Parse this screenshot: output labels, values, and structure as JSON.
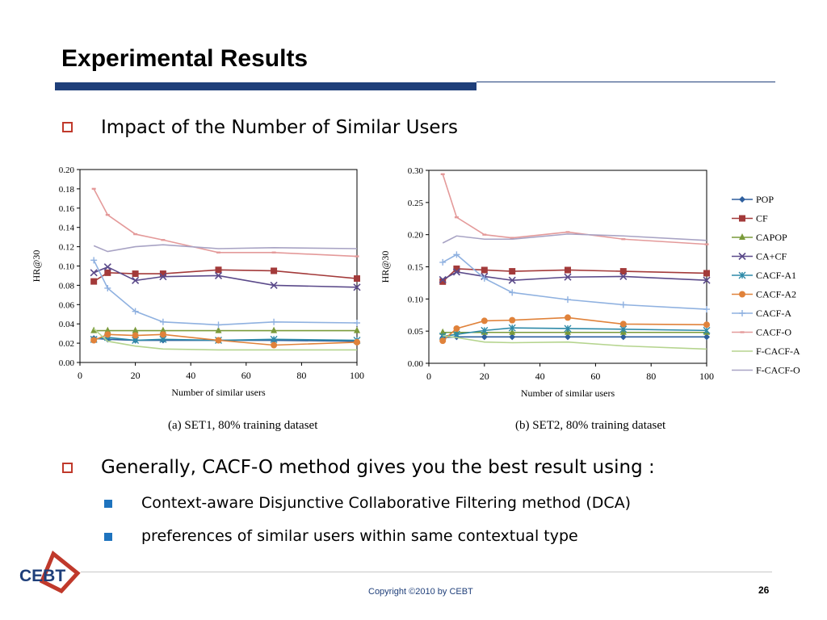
{
  "slide": {
    "title": "Experimental Results",
    "bullet1": "Impact of the Number of Similar Users",
    "bullet2": "Generally, CACF-O method gives you the best result using :",
    "sub1": "Context-aware Disjunctive Collaborative Filtering method (DCA)",
    "sub2": "preferences of similar users within same contextual type",
    "copyright": "Copyright ©2010 by CEBT",
    "page_number": "26",
    "logo_text": "CEBT"
  },
  "colors": {
    "title_rule": "#1f3f7a",
    "bullet_outline": "#c0392b",
    "sub_bullet": "#1e73be"
  },
  "legend": [
    {
      "name": "POP",
      "color": "#2e5f9e",
      "marker": "diamond"
    },
    {
      "name": "CF",
      "color": "#a33a3a",
      "marker": "square"
    },
    {
      "name": "CAPOP",
      "color": "#7a9a3a",
      "marker": "triangle"
    },
    {
      "name": "CA+CF",
      "color": "#5b4a8a",
      "marker": "x"
    },
    {
      "name": "CACF-A1",
      "color": "#2e8aa8",
      "marker": "asterisk"
    },
    {
      "name": "CACF-A2",
      "color": "#e0823a",
      "marker": "circle"
    },
    {
      "name": "CACF-A",
      "color": "#8fb1e0",
      "marker": "plus"
    },
    {
      "name": "CACF-O",
      "color": "#e49a9a",
      "marker": "dash"
    },
    {
      "name": "F-CACF-A",
      "color": "#b5d48e",
      "marker": "line"
    },
    {
      "name": "F-CACF-O",
      "color": "#a8a3c4",
      "marker": "line"
    }
  ],
  "chart_data": [
    {
      "type": "line",
      "caption": "(a) SET1, 80% training dataset",
      "xlabel": "Number of similar users",
      "ylabel": "HR@30",
      "xlim": [
        0,
        100
      ],
      "ylim": [
        0,
        0.2
      ],
      "xticks": [
        "0",
        "20",
        "40",
        "60",
        "80",
        "100"
      ],
      "yticks": [
        "0.00",
        "0.02",
        "0.04",
        "0.06",
        "0.08",
        "0.10",
        "0.12",
        "0.14",
        "0.16",
        "0.18",
        "0.20"
      ],
      "x": [
        5,
        10,
        20,
        30,
        50,
        70,
        100
      ],
      "series": [
        {
          "name": "POP",
          "values": [
            0.025,
            0.024,
            0.023,
            0.023,
            0.023,
            0.023,
            0.022
          ]
        },
        {
          "name": "CF",
          "values": [
            0.084,
            0.093,
            0.092,
            0.092,
            0.096,
            0.095,
            0.087
          ]
        },
        {
          "name": "CAPOP",
          "values": [
            0.033,
            0.033,
            0.033,
            0.033,
            0.033,
            0.033,
            0.033
          ]
        },
        {
          "name": "CA+CF",
          "values": [
            0.093,
            0.099,
            0.085,
            0.089,
            0.09,
            0.08,
            0.078
          ]
        },
        {
          "name": "CACF-A1",
          "values": [
            0.024,
            0.026,
            0.023,
            0.024,
            0.023,
            0.024,
            0.023
          ]
        },
        {
          "name": "CACF-A2",
          "values": [
            0.023,
            0.029,
            0.028,
            0.029,
            0.023,
            0.018,
            0.021
          ]
        },
        {
          "name": "CACF-A",
          "values": [
            0.106,
            0.077,
            0.053,
            0.042,
            0.039,
            0.042,
            0.041
          ]
        },
        {
          "name": "CACF-O",
          "values": [
            0.18,
            0.153,
            0.133,
            0.127,
            0.114,
            0.114,
            0.11
          ]
        },
        {
          "name": "F-CACF-A",
          "values": [
            0.035,
            0.022,
            0.017,
            0.014,
            0.013,
            0.013,
            0.013
          ]
        },
        {
          "name": "F-CACF-O",
          "values": [
            0.121,
            0.115,
            0.12,
            0.122,
            0.118,
            0.119,
            0.118
          ]
        }
      ]
    },
    {
      "type": "line",
      "caption": "(b) SET2, 80% training dataset",
      "xlabel": "Number of similar users",
      "ylabel": "HR@30",
      "xlim": [
        0,
        100
      ],
      "ylim": [
        0,
        0.3
      ],
      "xticks": [
        "0",
        "20",
        "40",
        "60",
        "80",
        "100"
      ],
      "yticks": [
        "0.00",
        "0.05",
        "0.10",
        "0.15",
        "0.20",
        "0.25",
        "0.30"
      ],
      "x": [
        5,
        10,
        20,
        30,
        50,
        70,
        100
      ],
      "series": [
        {
          "name": "POP",
          "values": [
            0.04,
            0.041,
            0.041,
            0.041,
            0.041,
            0.041,
            0.041
          ]
        },
        {
          "name": "CF",
          "values": [
            0.127,
            0.147,
            0.145,
            0.143,
            0.145,
            0.143,
            0.14
          ]
        },
        {
          "name": "CAPOP",
          "values": [
            0.048,
            0.048,
            0.048,
            0.048,
            0.048,
            0.048,
            0.048
          ]
        },
        {
          "name": "CA+CF",
          "values": [
            0.13,
            0.142,
            0.135,
            0.129,
            0.134,
            0.135,
            0.129
          ]
        },
        {
          "name": "CACF-A1",
          "values": [
            0.042,
            0.045,
            0.051,
            0.055,
            0.054,
            0.053,
            0.051
          ]
        },
        {
          "name": "CACF-A2",
          "values": [
            0.035,
            0.054,
            0.066,
            0.067,
            0.071,
            0.061,
            0.06
          ]
        },
        {
          "name": "CACF-A",
          "values": [
            0.157,
            0.169,
            0.132,
            0.11,
            0.099,
            0.091,
            0.084
          ]
        },
        {
          "name": "CACF-O",
          "values": [
            0.294,
            0.227,
            0.2,
            0.195,
            0.204,
            0.193,
            0.185
          ]
        },
        {
          "name": "F-CACF-A",
          "values": [
            0.043,
            0.04,
            0.033,
            0.032,
            0.033,
            0.027,
            0.022
          ]
        },
        {
          "name": "F-CACF-O",
          "values": [
            0.187,
            0.198,
            0.193,
            0.193,
            0.201,
            0.198,
            0.191
          ]
        }
      ]
    }
  ]
}
